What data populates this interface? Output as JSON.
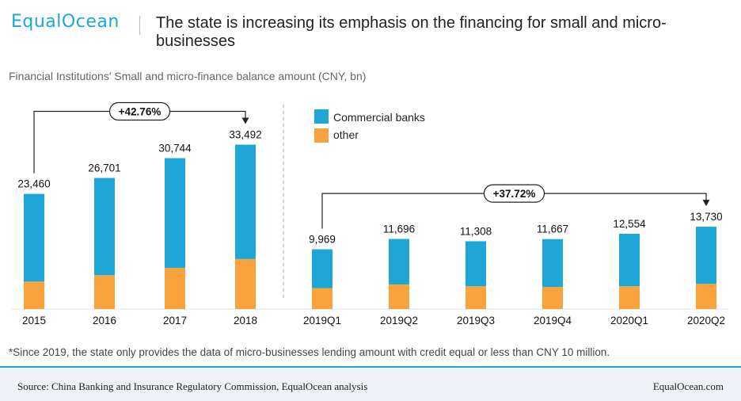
{
  "header": {
    "logo": "EqualOcean",
    "title": "The state is increasing its emphasis on the financing for small and micro-businesses"
  },
  "subtitle": "Financial Institutions' Small and micro-finance balance amount (CNY, bn)",
  "footnote": "*Since 2019, the state only provides the data of micro-businesses lending amount with credit equal or less than CNY 10 million.",
  "footer": {
    "source": "Source:  China Banking and Insurance Regulatory Commission, EqualOcean analysis",
    "brand": "EqualOcean.com"
  },
  "colors": {
    "commercial": "#1ea7d6",
    "other": "#f9a33e",
    "accent": "#1ea7d6"
  },
  "chart_data": [
    {
      "type": "bar",
      "stacked": true,
      "categories": [
        "2015",
        "2016",
        "2017",
        "2018"
      ],
      "totals": [
        23460,
        26701,
        30744,
        33492
      ],
      "total_labels": [
        "23,460",
        "26,701",
        "30,744",
        "33,492"
      ],
      "series": [
        {
          "name": "Commercial banks",
          "values": [
            17860,
            19801,
            22344,
            23292
          ]
        },
        {
          "name": "other",
          "values": [
            5600,
            6900,
            8400,
            10200
          ]
        }
      ],
      "ylim": [
        0,
        36000
      ],
      "growth_label": "+42.76%"
    },
    {
      "type": "bar",
      "stacked": true,
      "categories": [
        "2019Q1",
        "2019Q2",
        "2019Q3",
        "2019Q4",
        "2020Q1",
        "2020Q2"
      ],
      "totals": [
        9969,
        11696,
        11308,
        11667,
        12554,
        13730
      ],
      "total_labels": [
        "9,969",
        "11,696",
        "11,308",
        "11,667",
        "12,554",
        "13,730"
      ],
      "series": [
        {
          "name": "Commercial banks",
          "values": [
            6469,
            7596,
            7508,
            7967,
            8754,
            9530
          ]
        },
        {
          "name": "other",
          "values": [
            3500,
            4100,
            3800,
            3700,
            3800,
            4200
          ]
        }
      ],
      "ylim": [
        0,
        14800
      ],
      "growth_label": "+37.72%"
    }
  ]
}
